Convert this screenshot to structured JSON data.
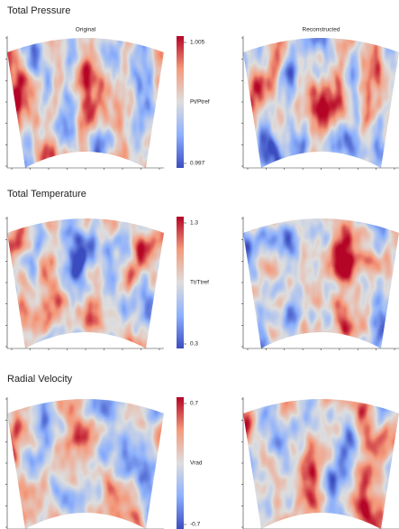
{
  "figure": {
    "panel_titles": [
      "Original",
      "Reconstructed"
    ],
    "rows": [
      {
        "title": "Total Pressure",
        "colorbar": {
          "label": "Pt/Ptref",
          "max": 1.005,
          "min": 0.997
        }
      },
      {
        "title": "Total Temperature",
        "colorbar": {
          "label": "Tt/Ttref",
          "max": 1.3,
          "min": 0.3
        }
      },
      {
        "title": "Radial Velocity",
        "colorbar": {
          "label": "Vrad",
          "max": 0.7,
          "min": -0.7
        }
      }
    ]
  }
}
